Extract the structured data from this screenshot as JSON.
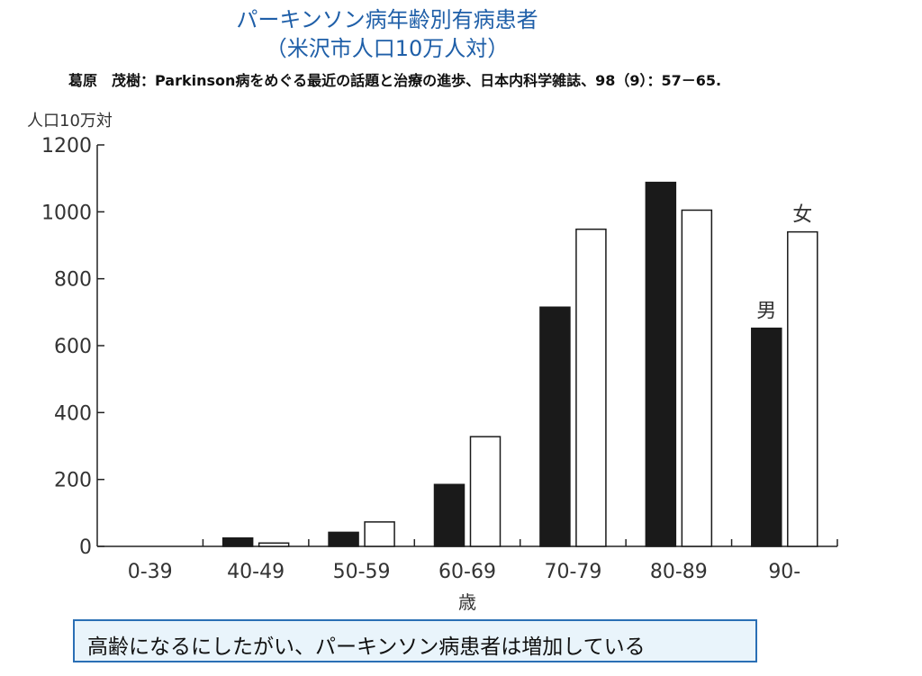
{
  "title_line1": "パーキンソン病年齢別有病患者",
  "title_line2": "（米沢市人口10万人対）",
  "citation": "葛原　茂樹：Parkinson病をめぐる最近の話題と治療の進歩、日本内科学雑誌、98（9）：57－65.",
  "caption": "高齢になるにしたがい、パーキンソン病患者は増加している",
  "colors": {
    "title": "#1f5fa8",
    "male_bar": "#1a1a1a",
    "female_bar": "#ffffff",
    "caption_border": "#2a6fb5",
    "caption_bg": "#e9f4fb"
  },
  "chart_data": {
    "type": "bar",
    "ylabel": "人口10万対",
    "xlabel": "歳",
    "categories": [
      "0-39",
      "40-49",
      "50-59",
      "60-69",
      "70-79",
      "80-89",
      "90-"
    ],
    "series": [
      {
        "name": "男",
        "values": [
          0,
          25,
          42,
          185,
          715,
          1088,
          652
        ]
      },
      {
        "name": "女",
        "values": [
          0,
          10,
          73,
          328,
          948,
          1005,
          940
        ]
      }
    ],
    "ylim": [
      0,
      1200
    ],
    "yticks": [
      "0",
      "200",
      "400",
      "600",
      "800",
      "1000",
      "1200"
    ],
    "grid": false,
    "legend": "inline labels above last group"
  }
}
